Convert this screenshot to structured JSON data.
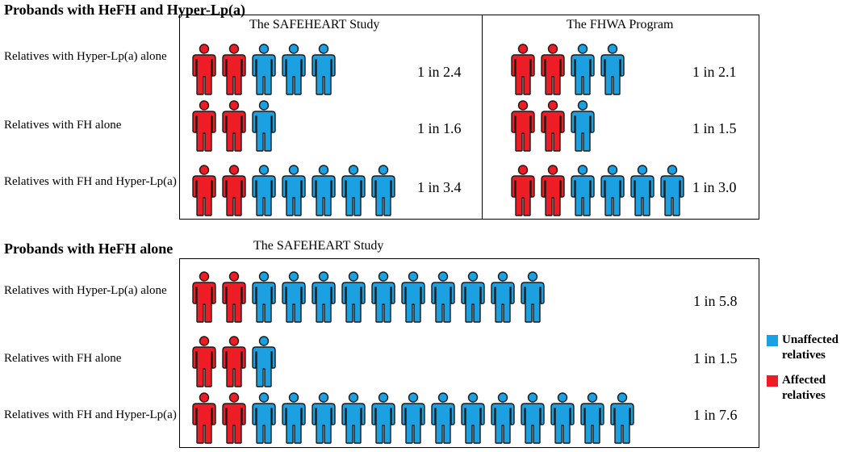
{
  "colors": {
    "affected": "#ee1c25",
    "unaffected": "#1ba1e2",
    "outline": "#1a1a1a"
  },
  "icons": {
    "person": "person-icon"
  },
  "section1": {
    "heading": "Probands with HeFH and Hyper-Lp(a)",
    "panels": [
      {
        "title": "The SAFEHEART  Study",
        "rows": [
          {
            "label": "Relatives with Hyper-Lp(a) alone",
            "affected": 2,
            "unaffected": 3,
            "ratio": "1 in 2.4"
          },
          {
            "label": "Relatives with FH alone",
            "affected": 2,
            "unaffected": 1,
            "ratio": "1 in 1.6"
          },
          {
            "label": "Relatives with FH and Hyper-Lp(a)",
            "affected": 2,
            "unaffected": 5,
            "ratio": "1 in 3.4"
          }
        ]
      },
      {
        "title": "The FHWA Program",
        "rows": [
          {
            "affected": 2,
            "unaffected": 2,
            "ratio": "1 in 2.1"
          },
          {
            "affected": 2,
            "unaffected": 1,
            "ratio": "1 in 1.5"
          },
          {
            "affected": 2,
            "unaffected": 4,
            "ratio": "1 in 3.0"
          }
        ]
      }
    ]
  },
  "section2": {
    "heading": "Probands with HeFH alone",
    "title": "The SAFEHEART  Study",
    "rows": [
      {
        "label": "Relatives with Hyper-Lp(a) alone",
        "affected": 2,
        "unaffected": 10,
        "ratio": "1 in 5.8"
      },
      {
        "label": "Relatives with FH alone",
        "affected": 2,
        "unaffected": 1,
        "ratio": "1 in 1.5"
      },
      {
        "label": "Relatives with FH and Hyper-Lp(a)",
        "affected": 2,
        "unaffected": 13,
        "ratio": "1 in 7.6"
      }
    ]
  },
  "legend": [
    {
      "label": "Unaffected relatives",
      "color": "#1ba1e2"
    },
    {
      "label": "Affected relatives",
      "color": "#ee1c25"
    }
  ]
}
